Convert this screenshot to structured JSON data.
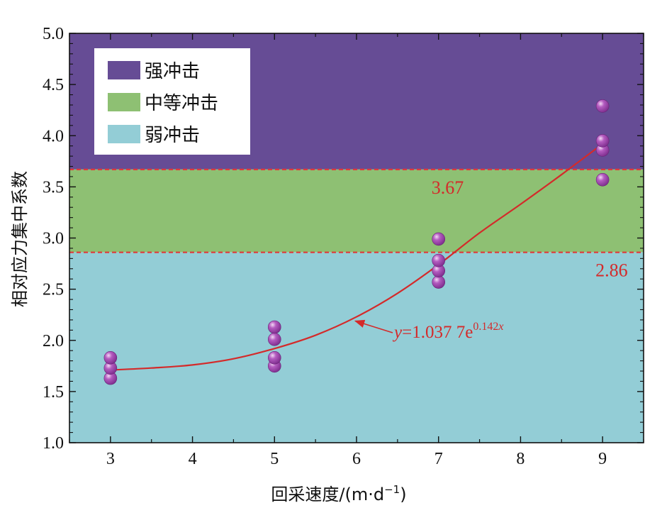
{
  "chart_data": {
    "type": "scatter",
    "xlabel": "回采速度/(m·d",
    "xlabel_sup": "−1",
    "xlabel_end": ")",
    "ylabel": "相对应力集中系数",
    "xlim": [
      2.5,
      9.5
    ],
    "ylim": [
      1.0,
      5.0
    ],
    "x_ticks": [
      3,
      4,
      5,
      6,
      7,
      8,
      9
    ],
    "y_ticks": [
      1.0,
      1.5,
      2.0,
      2.5,
      3.0,
      3.5,
      4.0,
      4.5,
      5.0
    ],
    "y_tick_labels": [
      "1.0",
      "1.5",
      "2.0",
      "2.5",
      "3.0",
      "3.5",
      "4.0",
      "4.5",
      "5.0"
    ],
    "zones": [
      {
        "name": "强冲击",
        "from": 3.67,
        "to": 5.0,
        "color": "#664c95"
      },
      {
        "name": "中等冲击",
        "from": 2.86,
        "to": 3.67,
        "color": "#8ec073"
      },
      {
        "name": "弱冲击",
        "from": 1.0,
        "to": 2.86,
        "color": "#93cdd6"
      }
    ],
    "thresholds": [
      {
        "value": 3.67,
        "label": "3.67"
      },
      {
        "value": 2.86,
        "label": "2.86"
      }
    ],
    "points": [
      {
        "x": 3,
        "y": 1.63
      },
      {
        "x": 3,
        "y": 1.73
      },
      {
        "x": 3,
        "y": 1.83
      },
      {
        "x": 5,
        "y": 1.75
      },
      {
        "x": 5,
        "y": 1.83
      },
      {
        "x": 5,
        "y": 2.01
      },
      {
        "x": 5,
        "y": 2.13
      },
      {
        "x": 7,
        "y": 2.57
      },
      {
        "x": 7,
        "y": 2.68
      },
      {
        "x": 7,
        "y": 2.78
      },
      {
        "x": 7,
        "y": 2.99
      },
      {
        "x": 9,
        "y": 3.57
      },
      {
        "x": 9,
        "y": 3.86
      },
      {
        "x": 9,
        "y": 3.95
      },
      {
        "x": 9,
        "y": 4.29
      }
    ],
    "fit": {
      "label_y": "y",
      "label_eq": "=1.037 7e",
      "label_exp": "0.142",
      "label_var": "x",
      "curve": [
        {
          "x": 3.0,
          "y": 1.71
        },
        {
          "x": 3.5,
          "y": 1.73
        },
        {
          "x": 4.0,
          "y": 1.76
        },
        {
          "x": 4.5,
          "y": 1.82
        },
        {
          "x": 5.0,
          "y": 1.92
        },
        {
          "x": 5.5,
          "y": 2.05
        },
        {
          "x": 6.0,
          "y": 2.23
        },
        {
          "x": 6.5,
          "y": 2.46
        },
        {
          "x": 7.0,
          "y": 2.74
        },
        {
          "x": 7.5,
          "y": 3.05
        },
        {
          "x": 8.0,
          "y": 3.33
        },
        {
          "x": 8.5,
          "y": 3.62
        },
        {
          "x": 9.0,
          "y": 3.92
        }
      ],
      "arrow_to": {
        "x": 5.95,
        "y": 2.21
      }
    },
    "colors": {
      "fit": "#d42a2a",
      "point": "#a346b0",
      "threshold": "#e03a3a"
    }
  }
}
